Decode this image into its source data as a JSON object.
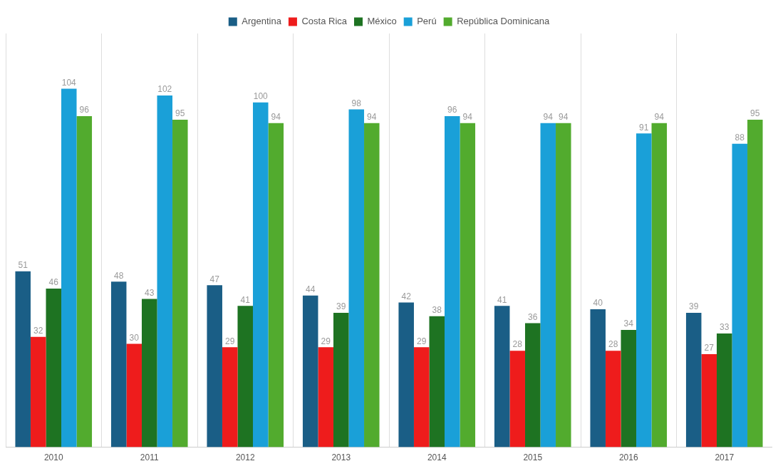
{
  "chart_data": {
    "type": "bar",
    "categories": [
      "2010",
      "2011",
      "2012",
      "2013",
      "2014",
      "2015",
      "2016",
      "2017"
    ],
    "series": [
      {
        "name": "Argentina",
        "color": "#1a5e86",
        "values": [
          51,
          48,
          47,
          44,
          42,
          41,
          40,
          39
        ]
      },
      {
        "name": "Costa Rica",
        "color": "#ee1c1c",
        "values": [
          32,
          30,
          29,
          29,
          29,
          28,
          28,
          27
        ]
      },
      {
        "name": "México",
        "color": "#1e7322",
        "values": [
          46,
          43,
          41,
          39,
          38,
          36,
          34,
          33
        ]
      },
      {
        "name": "Perú",
        "color": "#1aa0d8",
        "values": [
          104,
          102,
          100,
          98,
          96,
          94,
          91,
          88
        ]
      },
      {
        "name": "República Dominicana",
        "color": "#52ab2e",
        "values": [
          96,
          95,
          94,
          94,
          94,
          94,
          94,
          95
        ]
      }
    ],
    "data_labels": true,
    "grid": "x",
    "legend": "top"
  }
}
